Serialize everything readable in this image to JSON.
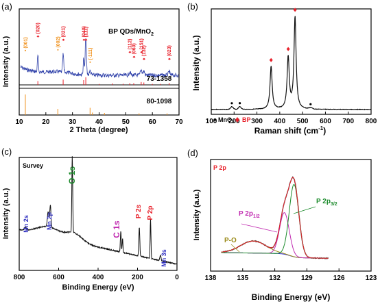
{
  "chart_data": [
    {
      "type": "line",
      "panel_label": "(a)",
      "title": "BP QDs/MnO",
      "title_sub": "2",
      "xlabel": "2 Theta (degree)",
      "ylabel": "Intensity (a.u.)",
      "xlim": [
        10,
        70
      ],
      "xticks": [
        10,
        20,
        30,
        40,
        50,
        60,
        70
      ],
      "reference_labels": [
        "73-1358",
        "80-1098"
      ],
      "peak_labels_bp": [
        {
          "x": 17,
          "text": "(020)"
        },
        {
          "x": 26.5,
          "text": "(021)"
        },
        {
          "x": 34.2,
          "text": "(040)"
        },
        {
          "x": 35,
          "text": "(111)"
        },
        {
          "x": 51.5,
          "text": "(112)"
        },
        {
          "x": 53,
          "text": "(060)"
        },
        {
          "x": 55.8,
          "text": "(151)"
        },
        {
          "x": 56.8,
          "text": "(132)"
        },
        {
          "x": 66.3,
          "text": "(023)"
        }
      ],
      "peak_labels_mno2": [
        {
          "x": 12.3,
          "text": "(001)"
        },
        {
          "x": 24.5,
          "text": "(002)"
        },
        {
          "x": 36.6,
          "text": "(-111)"
        }
      ],
      "ref_bp_sticks": [
        [
          17,
          0.4
        ],
        [
          26.5,
          0.55
        ],
        [
          34.2,
          0.5
        ],
        [
          35,
          0.8
        ],
        [
          40,
          0.1
        ],
        [
          45,
          0.15
        ],
        [
          49,
          0.12
        ],
        [
          51.5,
          0.18
        ],
        [
          53,
          0.18
        ],
        [
          55.8,
          0.3
        ],
        [
          56.8,
          0.25
        ],
        [
          60,
          0.1
        ],
        [
          63,
          0.1
        ],
        [
          66.3,
          0.2
        ]
      ],
      "ref_mno2_sticks": [
        [
          12.3,
          1
        ],
        [
          24.5,
          0.3
        ],
        [
          36.6,
          0.35
        ],
        [
          37.5,
          0.12
        ],
        [
          42,
          0.1
        ],
        [
          55,
          0.08
        ],
        [
          65.5,
          0.08
        ]
      ]
    },
    {
      "type": "line",
      "panel_label": "(b)",
      "xlabel": "Raman shift (cm",
      "xlabel_sup": "-1",
      "xlabel_end": ")",
      "ylabel": "Intensity (a.u.)",
      "xlim": [
        100,
        800
      ],
      "xticks": [
        100,
        200,
        300,
        400,
        500,
        600,
        700,
        800
      ],
      "legend": [
        {
          "text": "MnO",
          "sub": "2",
          "marker": "dot"
        },
        {
          "text": "BP",
          "marker": "diamond",
          "color": "#e8202a"
        }
      ],
      "legend_position": "bottom-left",
      "peaks": [
        {
          "x": 362,
          "h": 0.47
        },
        {
          "x": 437,
          "h": 0.56
        },
        {
          "x": 467,
          "h": 1.0
        }
      ],
      "bp_markers": [
        362,
        437,
        467
      ],
      "mno2_markers": [
        190,
        225,
        535
      ]
    },
    {
      "type": "line",
      "panel_label": "(c)",
      "title": "Survey",
      "xlabel": "Binding Energy (eV)",
      "ylabel": "Intensity (a.u.)",
      "xlim": [
        800,
        0
      ],
      "xticks": [
        800,
        600,
        400,
        200,
        0
      ],
      "annotations": [
        {
          "text": "O 1s",
          "color": "#1a8a2a"
        },
        {
          "text": "C 1s",
          "color": "#c02ab0"
        },
        {
          "text": "P 2s",
          "color": "#e8202a"
        },
        {
          "text": "P 2p",
          "color": "#e8202a"
        },
        {
          "text": "Mn 2s",
          "color": "#3030c0"
        },
        {
          "text": "Mn 2p",
          "color": "#3030c0"
        },
        {
          "text": "Mn 3s",
          "color": "#3030c0"
        }
      ]
    },
    {
      "type": "line",
      "panel_label": "(d)",
      "title": "P 2p",
      "xlabel": "Binding Energy (eV)",
      "ylabel": "Intensity (a.u.)",
      "xlim": [
        138,
        123
      ],
      "xticks": [
        138,
        135,
        132,
        129,
        126,
        123
      ],
      "annotations": [
        {
          "text": "P-O",
          "color": "#9a8a18"
        },
        {
          "text": "P 2p",
          "sub": "1/2",
          "color": "#c02ab0"
        },
        {
          "text": "P 2p",
          "sub": "3/2",
          "color": "#1a8a2a"
        }
      ],
      "components": [
        {
          "name": "P-O",
          "center": 134,
          "width": 1.2,
          "height": 0.11,
          "color": "#9a8a18"
        },
        {
          "name": "P 2p1/2",
          "center": 131.1,
          "width": 0.45,
          "height": 0.38,
          "color": "#c02ab0"
        },
        {
          "name": "P 2p3/2",
          "center": 130.2,
          "width": 0.45,
          "height": 0.66,
          "color": "#1a8a2a"
        }
      ]
    }
  ],
  "colors": {
    "xrd": "#2c3ea8",
    "raman": "#111111",
    "survey": "#111111",
    "bp_ref": "#e8202a",
    "mno2_ref": "#f0901a",
    "envelope": "#e8202a",
    "background": "#3030d0"
  }
}
